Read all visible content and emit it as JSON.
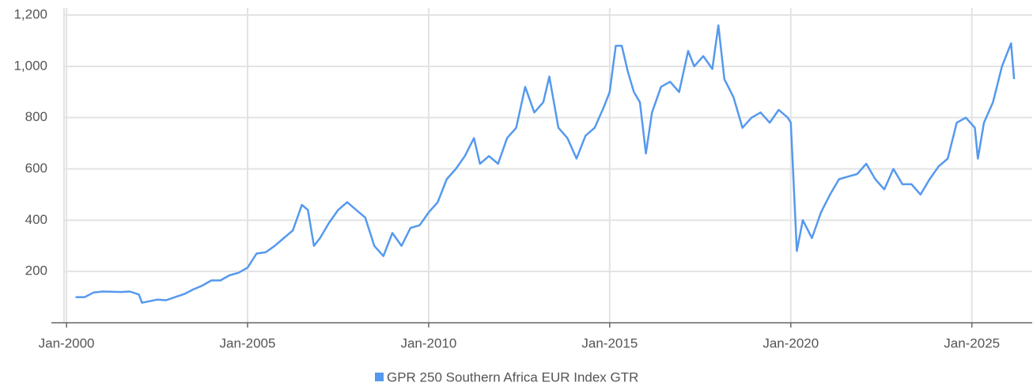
{
  "chart_data": {
    "type": "line",
    "x": [
      "2000-04",
      "2000-07",
      "2000-10",
      "2001-01",
      "2001-07",
      "2001-10",
      "2002-01",
      "2002-02",
      "2002-07",
      "2002-10",
      "2003-01",
      "2003-04",
      "2003-07",
      "2003-10",
      "2004-01",
      "2004-04",
      "2004-07",
      "2004-10",
      "2005-01",
      "2005-04",
      "2005-07",
      "2005-10",
      "2006-01",
      "2006-04",
      "2006-07",
      "2006-09",
      "2006-11",
      "2007-01",
      "2007-04",
      "2007-07",
      "2007-10",
      "2008-01",
      "2008-04",
      "2008-07",
      "2008-10",
      "2009-01",
      "2009-04",
      "2009-07",
      "2009-10",
      "2010-01",
      "2010-04",
      "2010-07",
      "2010-10",
      "2011-01",
      "2011-04",
      "2011-06",
      "2011-09",
      "2011-12",
      "2012-03",
      "2012-06",
      "2012-09",
      "2012-12",
      "2013-03",
      "2013-05",
      "2013-08",
      "2013-11",
      "2014-02",
      "2014-05",
      "2014-08",
      "2014-11",
      "2015-01",
      "2015-03",
      "2015-05",
      "2015-07",
      "2015-09",
      "2015-11",
      "2016-01",
      "2016-03",
      "2016-06",
      "2016-09",
      "2016-12",
      "2017-03",
      "2017-05",
      "2017-08",
      "2017-11",
      "2018-01",
      "2018-03",
      "2018-06",
      "2018-09",
      "2018-12",
      "2019-03",
      "2019-06",
      "2019-09",
      "2019-12",
      "2020-01",
      "2020-03",
      "2020-05",
      "2020-08",
      "2020-11",
      "2021-02",
      "2021-05",
      "2021-08",
      "2021-11",
      "2022-02",
      "2022-05",
      "2022-08",
      "2022-11",
      "2023-02",
      "2023-05",
      "2023-08",
      "2023-11",
      "2024-02",
      "2024-05",
      "2024-08",
      "2024-11",
      "2025-02",
      "2025-03",
      "2025-05",
      "2025-08",
      "2025-11",
      "2026-02",
      "2026-03"
    ],
    "series": [
      {
        "name": "GPR 250 Southern Africa EUR Index GTR",
        "color": "#5599ee",
        "values": [
          100,
          100,
          118,
          122,
          120,
          122,
          110,
          78,
          90,
          88,
          100,
          112,
          130,
          145,
          165,
          165,
          185,
          195,
          215,
          270,
          275,
          300,
          330,
          360,
          460,
          440,
          300,
          330,
          390,
          440,
          470,
          440,
          410,
          300,
          260,
          350,
          300,
          370,
          380,
          430,
          470,
          560,
          600,
          650,
          720,
          620,
          650,
          620,
          720,
          760,
          920,
          820,
          860,
          960,
          760,
          720,
          640,
          730,
          760,
          840,
          900,
          1080,
          1080,
          980,
          900,
          860,
          660,
          820,
          920,
          940,
          900,
          1060,
          1000,
          1040,
          990,
          1160,
          950,
          880,
          760,
          800,
          820,
          780,
          830,
          800,
          780,
          280,
          400,
          330,
          430,
          500,
          560,
          570,
          580,
          620,
          560,
          520,
          600,
          540,
          540,
          500,
          560,
          610,
          640,
          780,
          800,
          760,
          640,
          780,
          860,
          1000,
          1090,
          950
        ]
      }
    ],
    "xlim": [
      "1999-08",
      "2026-09"
    ],
    "xticks": [
      {
        "value": "2000-01",
        "label": "Jan-2000"
      },
      {
        "value": "2005-01",
        "label": "Jan-2005"
      },
      {
        "value": "2010-01",
        "label": "Jan-2010"
      },
      {
        "value": "2015-01",
        "label": "Jan-2015"
      },
      {
        "value": "2020-01",
        "label": "Jan-2020"
      },
      {
        "value": "2025-01",
        "label": "Jan-2025"
      }
    ],
    "ylim": [
      0,
      1200
    ],
    "yticks": [
      200,
      400,
      600,
      800,
      {
        "value": 1000,
        "label": "1,000"
      },
      {
        "value": 1200,
        "label": "1,200"
      }
    ],
    "grid": true
  }
}
